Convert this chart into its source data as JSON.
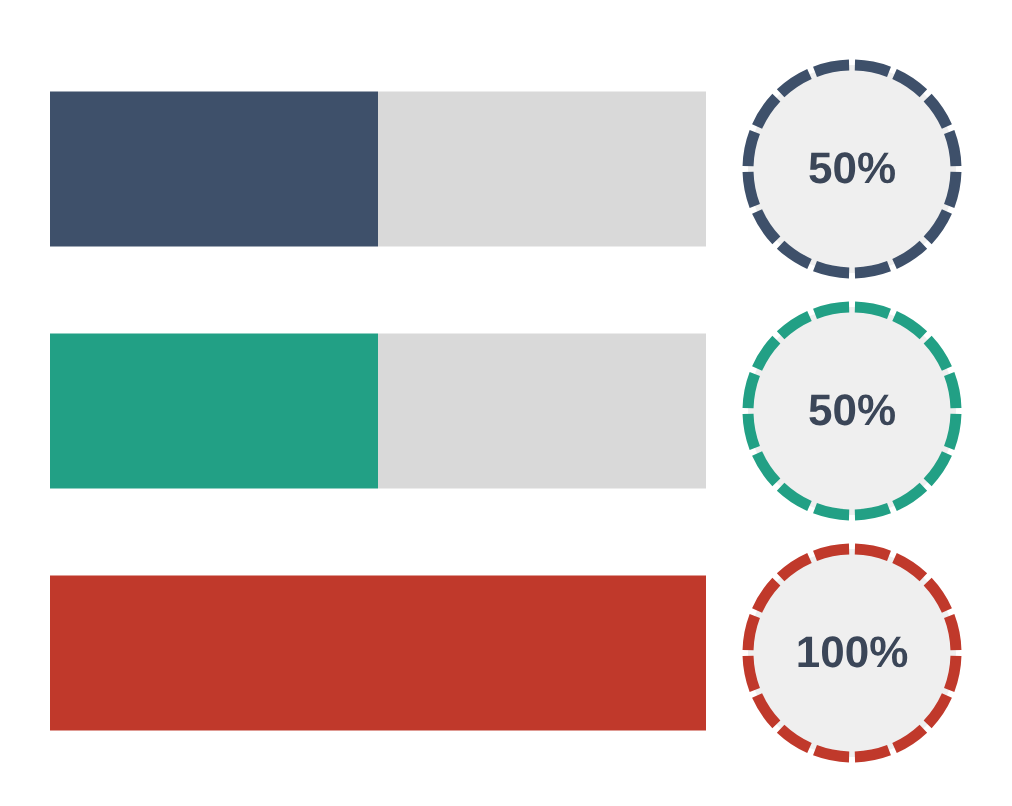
{
  "chart_data": {
    "type": "bar",
    "orientation": "horizontal",
    "stacked": true,
    "categories": [
      null,
      null,
      null
    ],
    "series": [
      {
        "colors": [
          "#3e506a",
          "#22a085",
          "#c0392b"
        ],
        "values": [
          50,
          50,
          100
        ],
        "value_labels": [
          "50%",
          "50%",
          "100%"
        ]
      },
      {
        "color": "#d9d9d9",
        "values": [
          50,
          50,
          0
        ]
      }
    ]
  }
}
